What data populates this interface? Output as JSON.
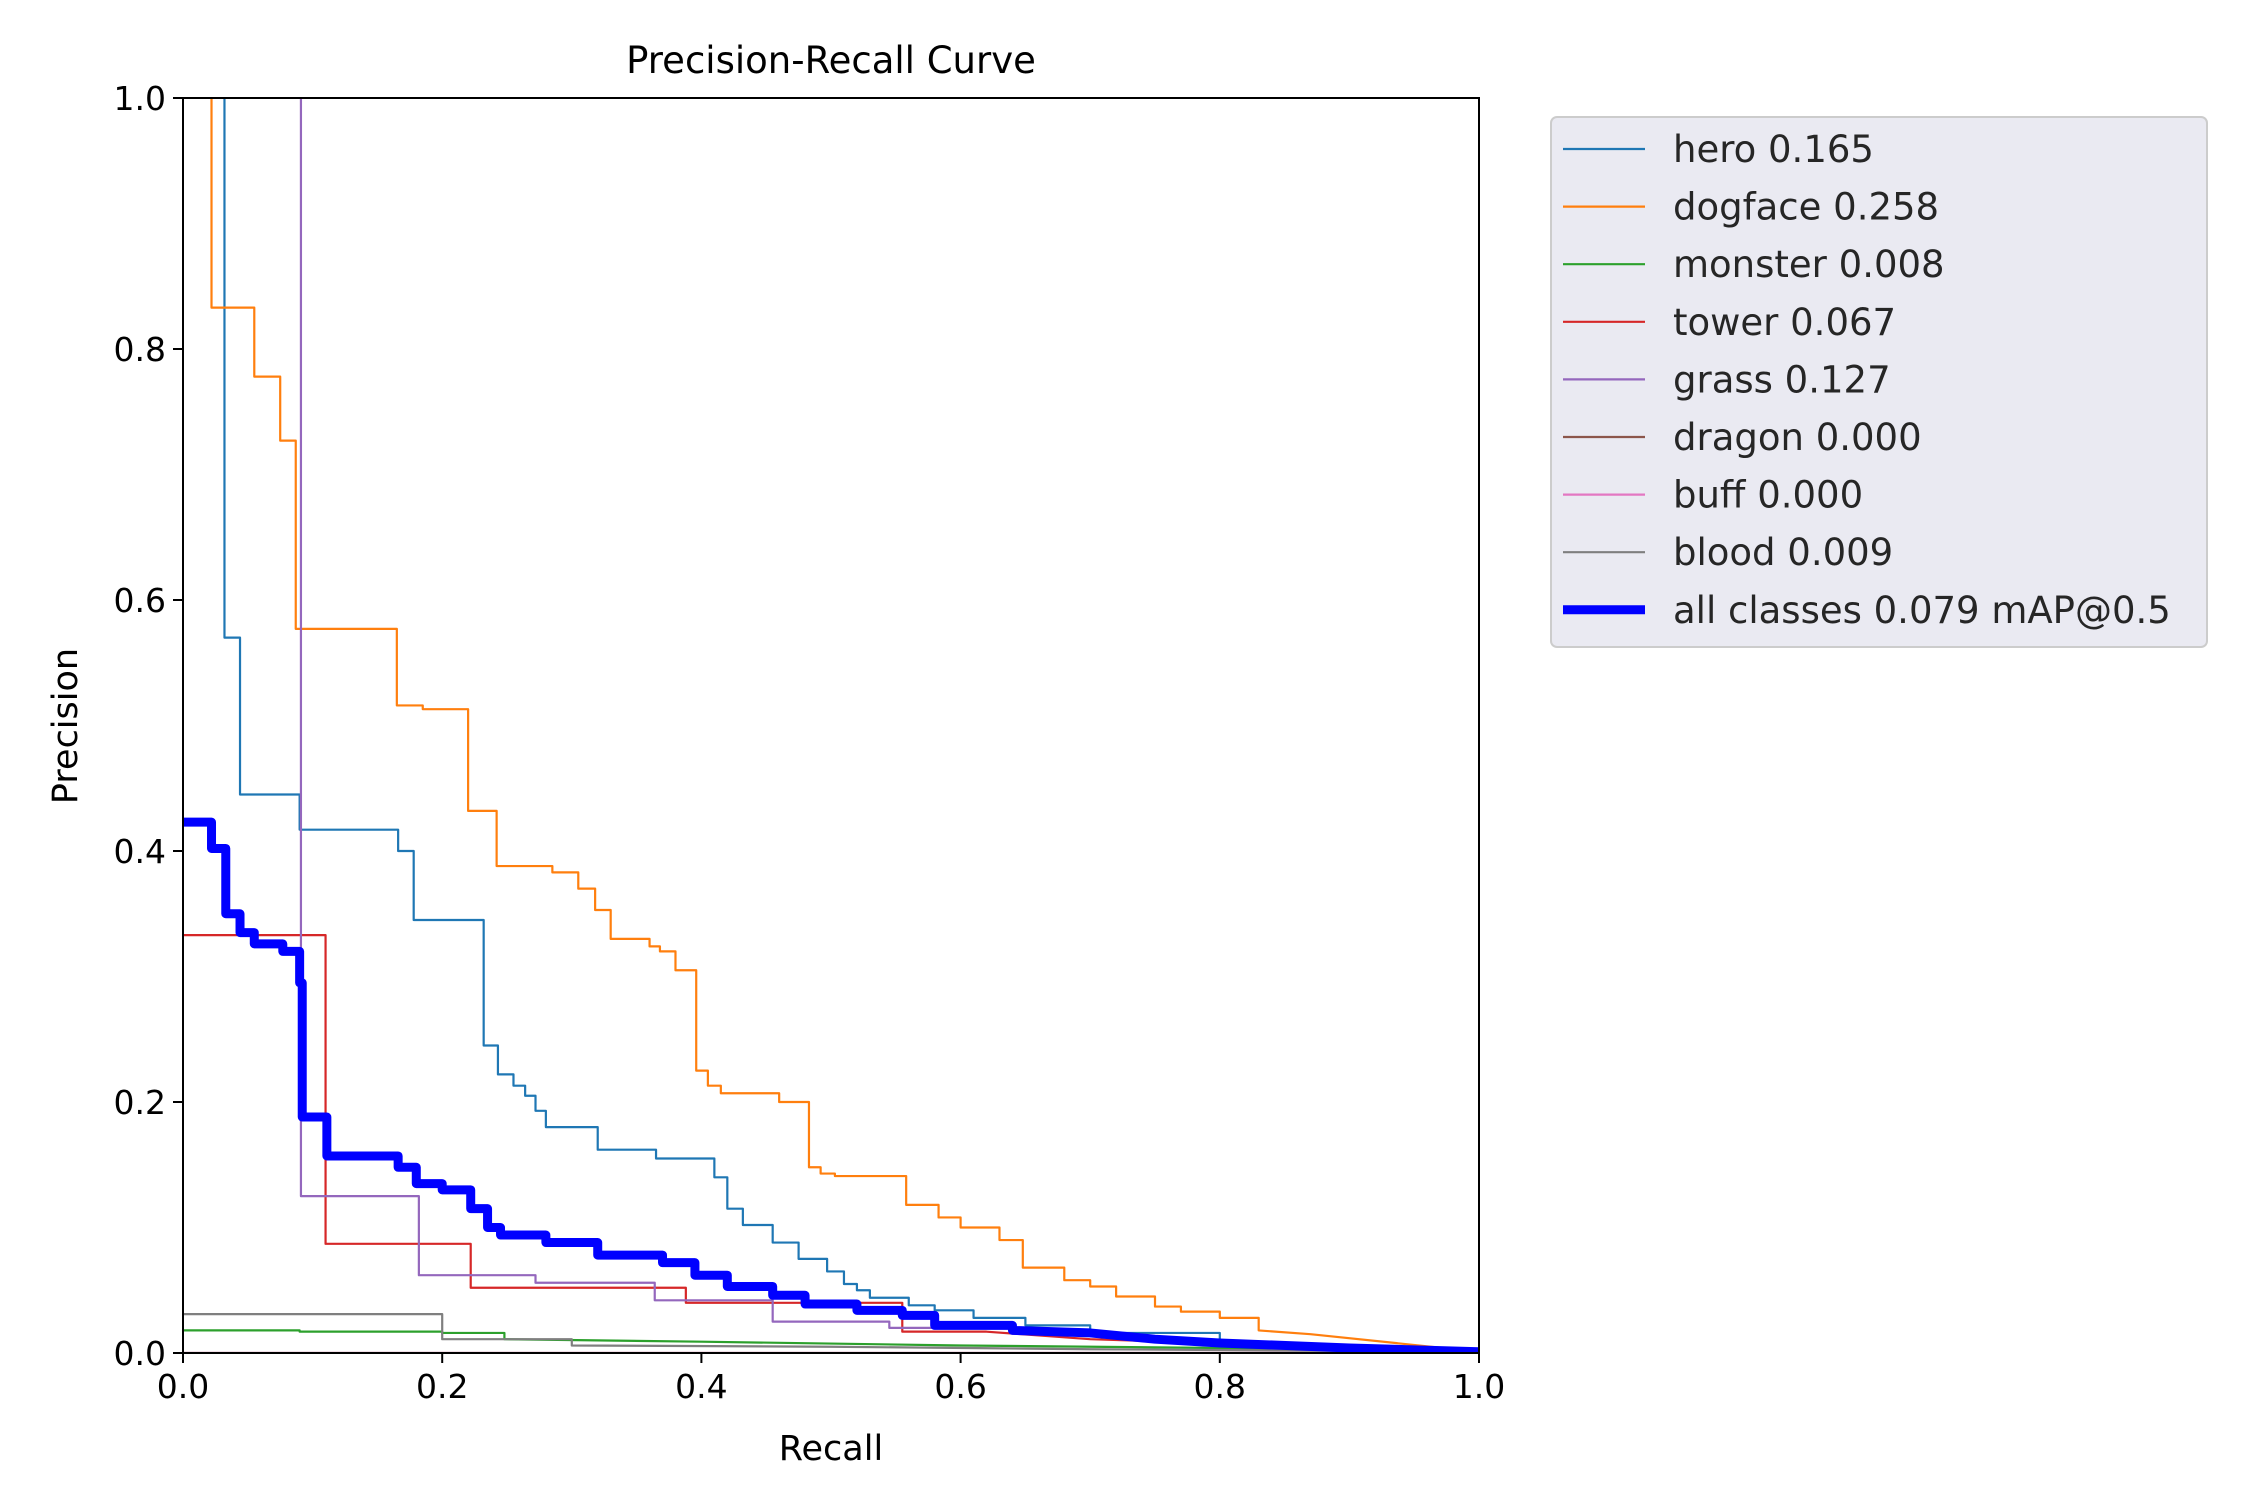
{
  "chart_data": {
    "type": "line",
    "title": "Precision-Recall Curve",
    "xlabel": "Recall",
    "ylabel": "Precision",
    "xlim": [
      0.0,
      1.0
    ],
    "ylim": [
      0.0,
      1.0
    ],
    "xticks": [
      "0.0",
      "0.2",
      "0.4",
      "0.6",
      "0.8",
      "1.0"
    ],
    "yticks": [
      "0.0",
      "0.2",
      "0.4",
      "0.6",
      "0.8",
      "1.0"
    ],
    "grid": false,
    "legend_position": "outside-right-top",
    "series": [
      {
        "name": "hero 0.165",
        "color": "#1f77b4",
        "points": [
          [
            0.032,
            1.0
          ],
          [
            0.032,
            0.57
          ],
          [
            0.044,
            0.57
          ],
          [
            0.044,
            0.445
          ],
          [
            0.09,
            0.445
          ],
          [
            0.09,
            0.417
          ],
          [
            0.166,
            0.417
          ],
          [
            0.166,
            0.4
          ],
          [
            0.178,
            0.4
          ],
          [
            0.178,
            0.345
          ],
          [
            0.232,
            0.345
          ],
          [
            0.232,
            0.245
          ],
          [
            0.243,
            0.245
          ],
          [
            0.243,
            0.222
          ],
          [
            0.255,
            0.222
          ],
          [
            0.255,
            0.213
          ],
          [
            0.264,
            0.213
          ],
          [
            0.264,
            0.205
          ],
          [
            0.272,
            0.205
          ],
          [
            0.272,
            0.193
          ],
          [
            0.28,
            0.193
          ],
          [
            0.28,
            0.18
          ],
          [
            0.32,
            0.18
          ],
          [
            0.32,
            0.162
          ],
          [
            0.365,
            0.162
          ],
          [
            0.365,
            0.155
          ],
          [
            0.41,
            0.155
          ],
          [
            0.41,
            0.14
          ],
          [
            0.42,
            0.14
          ],
          [
            0.42,
            0.115
          ],
          [
            0.432,
            0.115
          ],
          [
            0.432,
            0.102
          ],
          [
            0.455,
            0.102
          ],
          [
            0.455,
            0.088
          ],
          [
            0.475,
            0.088
          ],
          [
            0.475,
            0.075
          ],
          [
            0.497,
            0.075
          ],
          [
            0.497,
            0.065
          ],
          [
            0.51,
            0.065
          ],
          [
            0.51,
            0.055
          ],
          [
            0.52,
            0.055
          ],
          [
            0.52,
            0.05
          ],
          [
            0.53,
            0.05
          ],
          [
            0.53,
            0.044
          ],
          [
            0.56,
            0.044
          ],
          [
            0.56,
            0.038
          ],
          [
            0.58,
            0.038
          ],
          [
            0.58,
            0.034
          ],
          [
            0.61,
            0.034
          ],
          [
            0.61,
            0.028
          ],
          [
            0.65,
            0.028
          ],
          [
            0.65,
            0.022
          ],
          [
            0.7,
            0.022
          ],
          [
            0.7,
            0.016
          ],
          [
            0.8,
            0.016
          ],
          [
            0.8,
            0.008
          ],
          [
            1.0,
            0.001
          ]
        ]
      },
      {
        "name": "dogface 0.258",
        "color": "#ff7f0e",
        "points": [
          [
            0.022,
            1.0
          ],
          [
            0.022,
            0.833
          ],
          [
            0.055,
            0.833
          ],
          [
            0.055,
            0.778
          ],
          [
            0.075,
            0.778
          ],
          [
            0.075,
            0.727
          ],
          [
            0.087,
            0.727
          ],
          [
            0.087,
            0.577
          ],
          [
            0.165,
            0.577
          ],
          [
            0.165,
            0.516
          ],
          [
            0.185,
            0.516
          ],
          [
            0.185,
            0.513
          ],
          [
            0.22,
            0.513
          ],
          [
            0.22,
            0.432
          ],
          [
            0.242,
            0.432
          ],
          [
            0.242,
            0.388
          ],
          [
            0.285,
            0.388
          ],
          [
            0.285,
            0.383
          ],
          [
            0.305,
            0.383
          ],
          [
            0.305,
            0.37
          ],
          [
            0.318,
            0.37
          ],
          [
            0.318,
            0.353
          ],
          [
            0.33,
            0.353
          ],
          [
            0.33,
            0.33
          ],
          [
            0.36,
            0.33
          ],
          [
            0.36,
            0.324
          ],
          [
            0.368,
            0.324
          ],
          [
            0.368,
            0.32
          ],
          [
            0.38,
            0.32
          ],
          [
            0.38,
            0.305
          ],
          [
            0.396,
            0.305
          ],
          [
            0.396,
            0.225
          ],
          [
            0.405,
            0.225
          ],
          [
            0.405,
            0.213
          ],
          [
            0.415,
            0.213
          ],
          [
            0.415,
            0.207
          ],
          [
            0.46,
            0.207
          ],
          [
            0.46,
            0.2
          ],
          [
            0.483,
            0.2
          ],
          [
            0.483,
            0.148
          ],
          [
            0.492,
            0.148
          ],
          [
            0.492,
            0.143
          ],
          [
            0.503,
            0.143
          ],
          [
            0.503,
            0.141
          ],
          [
            0.558,
            0.141
          ],
          [
            0.558,
            0.118
          ],
          [
            0.583,
            0.118
          ],
          [
            0.583,
            0.108
          ],
          [
            0.6,
            0.108
          ],
          [
            0.6,
            0.1
          ],
          [
            0.63,
            0.1
          ],
          [
            0.63,
            0.09
          ],
          [
            0.648,
            0.09
          ],
          [
            0.648,
            0.068
          ],
          [
            0.68,
            0.068
          ],
          [
            0.68,
            0.058
          ],
          [
            0.7,
            0.058
          ],
          [
            0.7,
            0.053
          ],
          [
            0.72,
            0.053
          ],
          [
            0.72,
            0.045
          ],
          [
            0.75,
            0.045
          ],
          [
            0.75,
            0.037
          ],
          [
            0.77,
            0.037
          ],
          [
            0.77,
            0.033
          ],
          [
            0.8,
            0.033
          ],
          [
            0.8,
            0.028
          ],
          [
            0.83,
            0.028
          ],
          [
            0.83,
            0.018
          ],
          [
            0.87,
            0.015
          ],
          [
            1.0,
            0.001
          ]
        ]
      },
      {
        "name": "monster 0.008",
        "color": "#2ca02c",
        "points": [
          [
            0.0,
            0.018
          ],
          [
            0.09,
            0.018
          ],
          [
            0.09,
            0.017
          ],
          [
            0.2,
            0.017
          ],
          [
            0.2,
            0.016
          ],
          [
            0.248,
            0.016
          ],
          [
            0.248,
            0.011
          ],
          [
            0.4,
            0.009
          ],
          [
            0.6,
            0.006
          ],
          [
            0.8,
            0.004
          ],
          [
            1.0,
            0.001
          ]
        ]
      },
      {
        "name": "tower 0.067",
        "color": "#d62728",
        "points": [
          [
            0.0,
            0.333
          ],
          [
            0.11,
            0.333
          ],
          [
            0.11,
            0.087
          ],
          [
            0.222,
            0.087
          ],
          [
            0.222,
            0.052
          ],
          [
            0.388,
            0.052
          ],
          [
            0.388,
            0.04
          ],
          [
            0.555,
            0.04
          ],
          [
            0.555,
            0.017
          ],
          [
            0.62,
            0.017
          ],
          [
            0.7,
            0.011
          ],
          [
            1.0,
            0.001
          ]
        ]
      },
      {
        "name": "grass 0.127",
        "color": "#9467bd",
        "points": [
          [
            0.091,
            1.0
          ],
          [
            0.091,
            0.125
          ],
          [
            0.182,
            0.125
          ],
          [
            0.182,
            0.062
          ],
          [
            0.272,
            0.062
          ],
          [
            0.272,
            0.056
          ],
          [
            0.364,
            0.056
          ],
          [
            0.364,
            0.042
          ],
          [
            0.455,
            0.042
          ],
          [
            0.455,
            0.025
          ],
          [
            0.545,
            0.025
          ],
          [
            0.545,
            0.02
          ],
          [
            0.64,
            0.02
          ],
          [
            0.8,
            0.008
          ],
          [
            1.0,
            0.001
          ]
        ]
      },
      {
        "name": "dragon 0.000",
        "color": "#8c564b",
        "points": [
          [
            0.0,
            0.0
          ],
          [
            1.0,
            0.0
          ]
        ]
      },
      {
        "name": "buff 0.000",
        "color": "#e377c2",
        "points": [
          [
            0.0,
            0.0
          ],
          [
            1.0,
            0.0
          ]
        ]
      },
      {
        "name": "blood 0.009",
        "color": "#7f7f7f",
        "points": [
          [
            0.0,
            0.031
          ],
          [
            0.2,
            0.031
          ],
          [
            0.2,
            0.011
          ],
          [
            0.3,
            0.011
          ],
          [
            0.3,
            0.006
          ],
          [
            0.5,
            0.005
          ],
          [
            0.7,
            0.003
          ],
          [
            1.0,
            0.001
          ]
        ]
      },
      {
        "name": "all classes 0.079 mAP@0.5",
        "color": "#0000ff",
        "bold": true,
        "points": [
          [
            0.0,
            0.423
          ],
          [
            0.022,
            0.423
          ],
          [
            0.022,
            0.402
          ],
          [
            0.033,
            0.402
          ],
          [
            0.033,
            0.35
          ],
          [
            0.044,
            0.35
          ],
          [
            0.044,
            0.335
          ],
          [
            0.055,
            0.335
          ],
          [
            0.055,
            0.326
          ],
          [
            0.077,
            0.326
          ],
          [
            0.077,
            0.32
          ],
          [
            0.09,
            0.32
          ],
          [
            0.09,
            0.295
          ],
          [
            0.092,
            0.295
          ],
          [
            0.092,
            0.188
          ],
          [
            0.111,
            0.188
          ],
          [
            0.111,
            0.157
          ],
          [
            0.166,
            0.157
          ],
          [
            0.166,
            0.148
          ],
          [
            0.18,
            0.148
          ],
          [
            0.18,
            0.135
          ],
          [
            0.2,
            0.135
          ],
          [
            0.2,
            0.13
          ],
          [
            0.222,
            0.13
          ],
          [
            0.222,
            0.115
          ],
          [
            0.235,
            0.115
          ],
          [
            0.235,
            0.1
          ],
          [
            0.245,
            0.1
          ],
          [
            0.245,
            0.094
          ],
          [
            0.28,
            0.094
          ],
          [
            0.28,
            0.088
          ],
          [
            0.32,
            0.088
          ],
          [
            0.32,
            0.078
          ],
          [
            0.37,
            0.078
          ],
          [
            0.37,
            0.072
          ],
          [
            0.395,
            0.072
          ],
          [
            0.395,
            0.062
          ],
          [
            0.42,
            0.062
          ],
          [
            0.42,
            0.053
          ],
          [
            0.455,
            0.053
          ],
          [
            0.455,
            0.046
          ],
          [
            0.48,
            0.046
          ],
          [
            0.48,
            0.039
          ],
          [
            0.52,
            0.039
          ],
          [
            0.52,
            0.034
          ],
          [
            0.555,
            0.034
          ],
          [
            0.555,
            0.03
          ],
          [
            0.58,
            0.03
          ],
          [
            0.58,
            0.022
          ],
          [
            0.64,
            0.022
          ],
          [
            0.64,
            0.018
          ],
          [
            0.7,
            0.016
          ],
          [
            0.75,
            0.011
          ],
          [
            0.8,
            0.008
          ],
          [
            0.9,
            0.004
          ],
          [
            1.0,
            0.001
          ]
        ]
      }
    ]
  }
}
